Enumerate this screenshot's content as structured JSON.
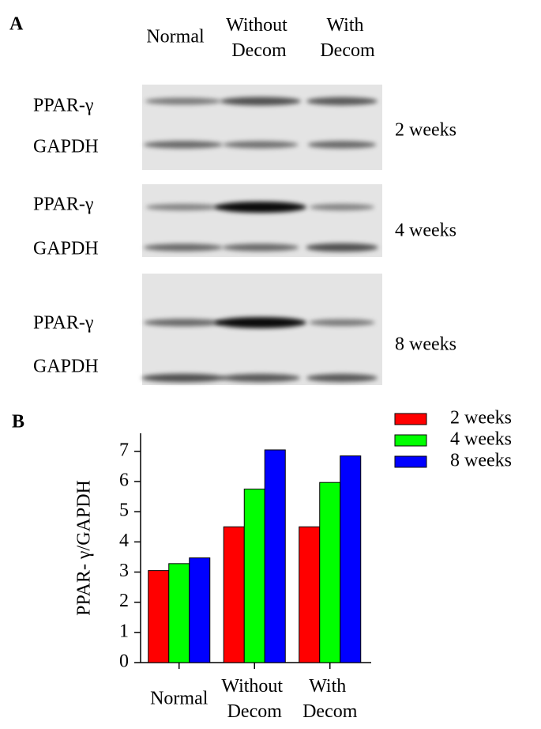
{
  "panel_a": {
    "label": "A",
    "columns": [
      "Normal",
      "Without Decom",
      "With Decom"
    ],
    "blots": [
      {
        "rows": [
          "PPAR-γ",
          "GAPDH"
        ],
        "time": "2 weeks"
      },
      {
        "rows": [
          "PPAR-γ",
          "GAPDH"
        ],
        "time": "4 weeks"
      },
      {
        "rows": [
          "PPAR-γ",
          "GAPDH"
        ],
        "time": "8 weeks"
      }
    ]
  },
  "panel_b": {
    "label": "B"
  },
  "chart_data": {
    "type": "bar",
    "y_label": "PPAR- γ/GAPDH",
    "categories": [
      "Normal",
      "Without Decom",
      "With Decom"
    ],
    "series": [
      {
        "name": "2 weeks",
        "color": "#ff0000",
        "values": [
          3.05,
          4.5,
          4.5
        ]
      },
      {
        "name": "4 weeks",
        "color": "#00ff00",
        "values": [
          3.28,
          5.75,
          5.97
        ]
      },
      {
        "name": "8 weeks",
        "color": "#0000ff",
        "values": [
          3.47,
          7.05,
          6.85
        ]
      }
    ],
    "ylim": [
      0,
      7.6
    ],
    "yticks": [
      0,
      1,
      2,
      3,
      4,
      5,
      6,
      7
    ],
    "legend": "right"
  }
}
